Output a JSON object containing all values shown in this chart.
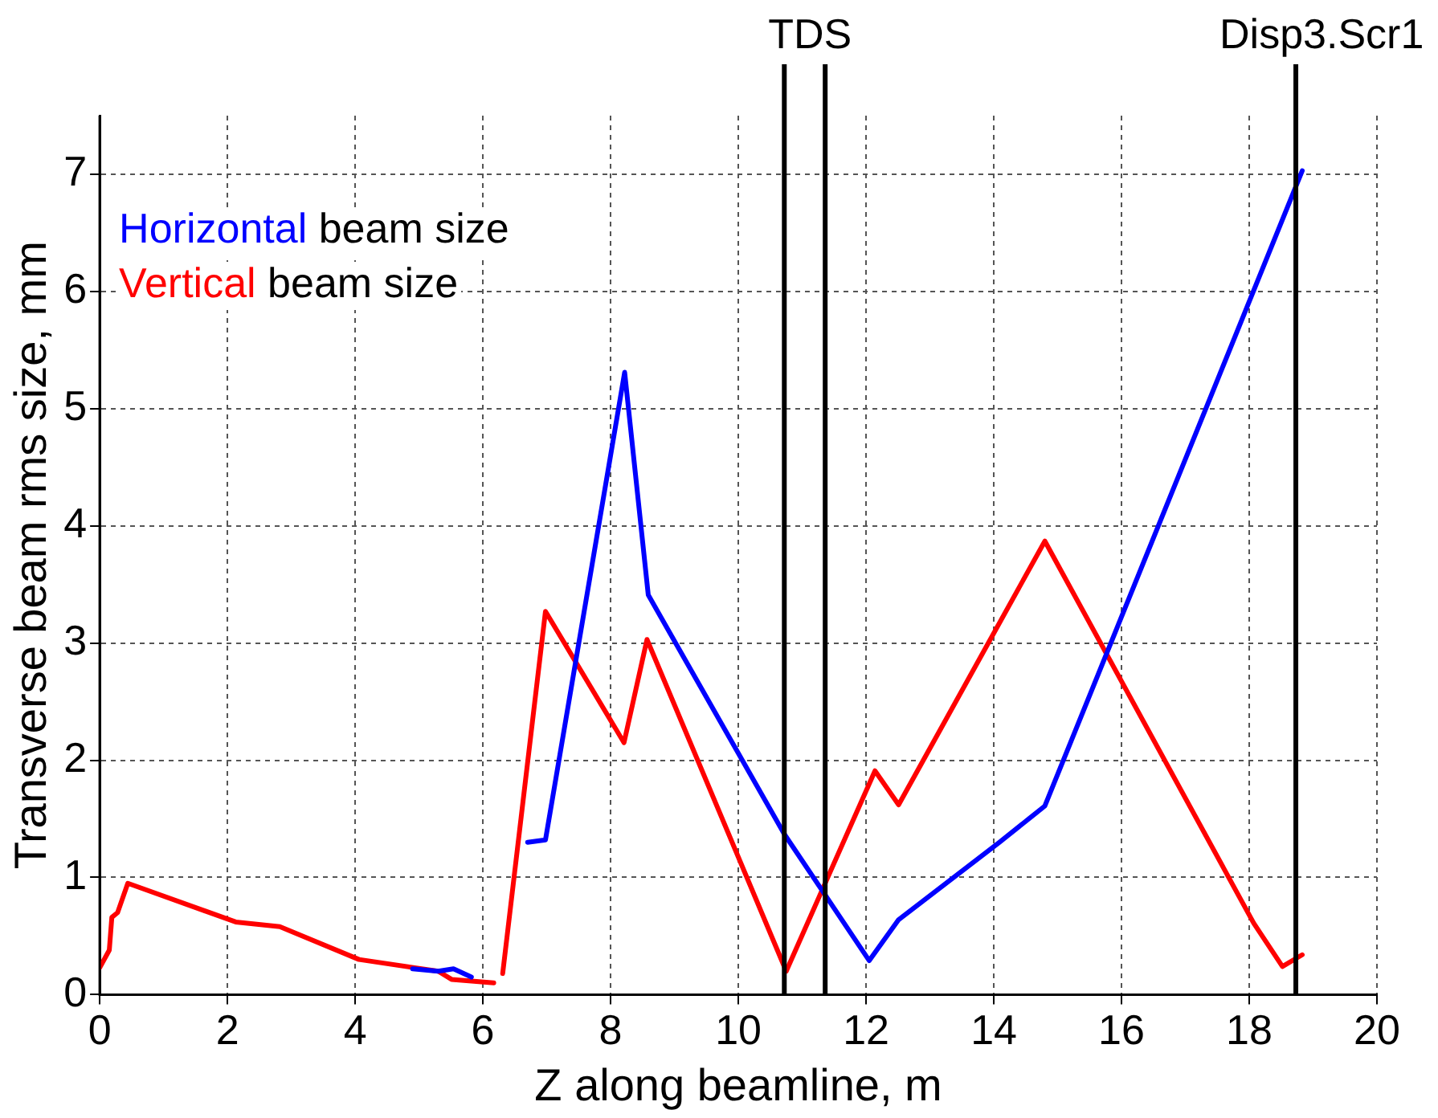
{
  "chart_data": {
    "type": "line",
    "xlabel": "Z along beamline, m",
    "ylabel": "Transverse beam rms size, mm",
    "xlim": [
      0,
      20
    ],
    "xticks": [
      0,
      2,
      4,
      6,
      8,
      10,
      12,
      14,
      16,
      18,
      20
    ],
    "ylim": [
      0,
      7.5
    ],
    "yticks": [
      0,
      1,
      2,
      3,
      4,
      5,
      6,
      7
    ],
    "grid": true,
    "legend": "top left",
    "marker": "none",
    "line_style": "solid",
    "series": [
      {
        "name": "Horizontal beam size",
        "color": "#0000ff",
        "x": [
          4.9,
          5.3,
          5.54,
          5.82,
          null,
          6.7,
          6.98,
          8.22,
          8.59,
          10.72,
          12.05,
          12.51,
          14.09,
          14.8,
          18.83
        ],
        "values": [
          0.22,
          0.2,
          0.22,
          0.15,
          null,
          1.3,
          1.32,
          5.31,
          3.41,
          1.37,
          0.29,
          0.64,
          1.3,
          1.61,
          7.03
        ]
      },
      {
        "name": "Vertical beam size",
        "color": "#ff0000",
        "x": [
          0,
          0.15,
          0.19,
          0.28,
          0.44,
          2.13,
          2.82,
          4.06,
          5.3,
          5.51,
          6.17,
          null,
          6.31,
          6.98,
          8.21,
          8.57,
          10.75,
          12.14,
          12.51,
          14.8,
          18.07,
          18.52,
          18.83
        ],
        "values": [
          0.23,
          0.38,
          0.66,
          0.7,
          0.95,
          0.62,
          0.58,
          0.3,
          0.2,
          0.13,
          0.1,
          null,
          0.18,
          3.27,
          2.15,
          3.03,
          0.2,
          1.91,
          1.62,
          3.87,
          0.61,
          0.24,
          0.34
        ]
      }
    ],
    "ref_lines": [
      {
        "axis": "x",
        "value": 10.72,
        "label": "TDS",
        "color": "#000000"
      },
      {
        "axis": "x",
        "value": 11.36,
        "label": null,
        "color": "#000000"
      },
      {
        "axis": "x",
        "value": 18.73,
        "label": "Disp3.Scr1",
        "color": "#000000"
      }
    ]
  }
}
